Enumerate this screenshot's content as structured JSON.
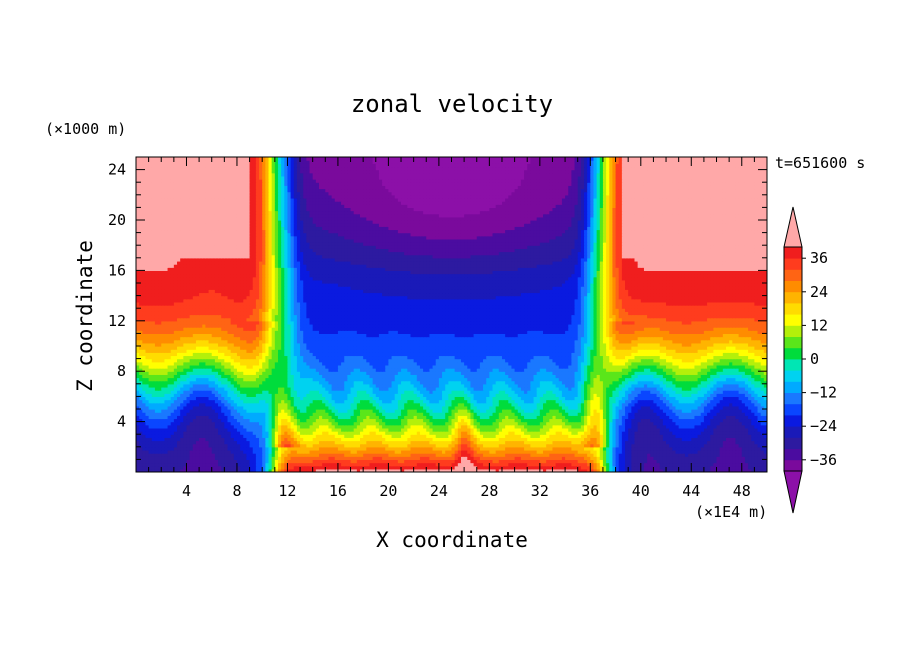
{
  "chart_data": {
    "type": "heatmap",
    "title": "zonal velocity",
    "xlabel": "X coordinate",
    "ylabel": "Z coordinate",
    "x_unit": "(×1E4 m)",
    "y_unit": "(×1000 m)",
    "time_label": "t=651600 s",
    "xlim": [
      0,
      50
    ],
    "ylim": [
      0,
      25
    ],
    "x_ticks": [
      4,
      8,
      12,
      16,
      20,
      24,
      28,
      32,
      36,
      40,
      44,
      48
    ],
    "y_ticks": [
      4,
      8,
      12,
      16,
      20,
      24
    ],
    "x_tick_labels": [
      "4",
      "8",
      "12",
      "16",
      "20",
      "24",
      "28",
      "32",
      "36",
      "40",
      "44",
      "48"
    ],
    "y_tick_labels": [
      "4",
      "8",
      "12",
      "16",
      "20",
      "24"
    ],
    "colorbar": {
      "levels": [
        -40,
        -36,
        -32,
        -28,
        -24,
        -20,
        -16,
        -12,
        -8,
        -4,
        0,
        4,
        8,
        12,
        16,
        20,
        24,
        28,
        32,
        36,
        40
      ],
      "colors": [
        "#7a0a9c",
        "#4b0ca0",
        "#2d1aa0",
        "#1a1ab8",
        "#0a1ae0",
        "#0a46ff",
        "#1a78ff",
        "#00aaff",
        "#00d2f0",
        "#00e6b4",
        "#00dc3c",
        "#5ae61a",
        "#b4f00a",
        "#ffff00",
        "#ffdc00",
        "#ffb400",
        "#ff8c00",
        "#ff6414",
        "#ff3c1e",
        "#f01e1e"
      ],
      "under_color": "#8c10a8",
      "over_color": "#ffa8a8",
      "tick_values": [
        36,
        24,
        12,
        0,
        -12,
        -24,
        -36
      ],
      "tick_labels": [
        "36",
        "24",
        "12",
        "0",
        "−12",
        "−24",
        "−36"
      ]
    },
    "field_description": "Westerly (positive) jets at x<10 and x>38, easterly (negative) core between x=12 and x=36 above ~8 km; strong positive near-surface layer under easterly core.",
    "features": {
      "west_jet_boundary": 10.8,
      "east_jet_boundary": 37.2,
      "over_region_west": [
        1,
        8
      ],
      "over_region_east": [
        38.5,
        50
      ]
    }
  }
}
